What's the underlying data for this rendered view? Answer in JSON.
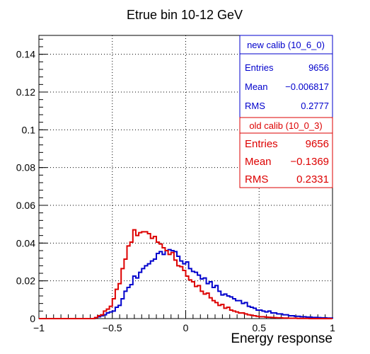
{
  "chart_data": {
    "type": "line",
    "title": "Etrue bin 10-12 GeV",
    "xlabel": "Energy response",
    "ylabel": "",
    "xlim": [
      -1,
      1
    ],
    "ylim": [
      0,
      0.15
    ],
    "grid": true,
    "x_ticks": [
      {
        "value": -1,
        "label": "−1"
      },
      {
        "value": -0.5,
        "label": "−0.5"
      },
      {
        "value": 0,
        "label": "0"
      },
      {
        "value": 0.5,
        "label": "0.5"
      },
      {
        "value": 1,
        "label": "1"
      }
    ],
    "y_ticks": [
      {
        "value": 0,
        "label": "0"
      },
      {
        "value": 0.02,
        "label": "0.02"
      },
      {
        "value": 0.04,
        "label": "0.04"
      },
      {
        "value": 0.06,
        "label": "0.06"
      },
      {
        "value": 0.08,
        "label": "0.08"
      },
      {
        "value": 0.1,
        "label": "0.1"
      },
      {
        "value": 0.12,
        "label": "0.12"
      },
      {
        "value": 0.14,
        "label": "0.14"
      }
    ],
    "bin_width": 0.02,
    "series": [
      {
        "name": "new calib (10_6_0)",
        "color": "#0000cc",
        "x": [
          -0.62,
          -0.6,
          -0.58,
          -0.56,
          -0.54,
          -0.52,
          -0.5,
          -0.48,
          -0.46,
          -0.44,
          -0.42,
          -0.4,
          -0.38,
          -0.36,
          -0.34,
          -0.32,
          -0.3,
          -0.28,
          -0.26,
          -0.24,
          -0.22,
          -0.2,
          -0.18,
          -0.16,
          -0.14,
          -0.12,
          -0.1,
          -0.08,
          -0.06,
          -0.04,
          -0.02,
          0,
          0.02,
          0.04,
          0.06,
          0.08,
          0.1,
          0.12,
          0.14,
          0.16,
          0.18,
          0.2,
          0.22,
          0.24,
          0.26,
          0.28,
          0.3,
          0.32,
          0.34,
          0.36,
          0.38,
          0.4,
          0.42,
          0.44,
          0.46,
          0.48,
          0.5,
          0.52,
          0.54,
          0.56,
          0.58,
          0.6,
          0.62,
          0.64,
          0.66,
          0.68,
          0.7,
          0.72,
          0.74,
          0.76,
          0.78,
          0.8,
          0.82,
          0.84,
          0.86,
          0.88,
          0.9,
          0.92,
          0.94,
          0.96,
          0.98
        ],
        "values": [
          0.0005,
          0.001,
          0.0015,
          0.002,
          0.003,
          0.0035,
          0.004,
          0.006,
          0.007,
          0.0105,
          0.0145,
          0.0165,
          0.018,
          0.0225,
          0.0215,
          0.0245,
          0.0265,
          0.028,
          0.029,
          0.0305,
          0.0315,
          0.0345,
          0.0355,
          0.034,
          0.036,
          0.0365,
          0.036,
          0.0355,
          0.033,
          0.0305,
          0.029,
          0.03,
          0.0265,
          0.025,
          0.0245,
          0.023,
          0.021,
          0.0215,
          0.0185,
          0.0195,
          0.0165,
          0.0175,
          0.0145,
          0.0125,
          0.013,
          0.012,
          0.0115,
          0.0105,
          0.0095,
          0.0095,
          0.008,
          0.0085,
          0.0065,
          0.006,
          0.0055,
          0.0045,
          0.0045,
          0.004,
          0.0035,
          0.004,
          0.003,
          0.003,
          0.0025,
          0.0025,
          0.002,
          0.002,
          0.0015,
          0.0015,
          0.0012,
          0.0012,
          0.001,
          0.001,
          0.0008,
          0.0008,
          0.0006,
          0.0006,
          0.0005,
          0.0004,
          0.0004,
          0.0003,
          0.0003
        ]
      },
      {
        "name": "old calib (10_0_3)",
        "color": "#dd0000",
        "x": [
          -0.62,
          -0.6,
          -0.58,
          -0.56,
          -0.54,
          -0.52,
          -0.5,
          -0.48,
          -0.46,
          -0.44,
          -0.42,
          -0.4,
          -0.38,
          -0.36,
          -0.34,
          -0.32,
          -0.3,
          -0.28,
          -0.26,
          -0.24,
          -0.22,
          -0.2,
          -0.18,
          -0.16,
          -0.14,
          -0.12,
          -0.1,
          -0.08,
          -0.06,
          -0.04,
          -0.02,
          0,
          0.02,
          0.04,
          0.06,
          0.08,
          0.1,
          0.12,
          0.14,
          0.16,
          0.18,
          0.2,
          0.22,
          0.24,
          0.26,
          0.28,
          0.3,
          0.32,
          0.34,
          0.36,
          0.38,
          0.4,
          0.42,
          0.44,
          0.46,
          0.48,
          0.5,
          0.52,
          0.54,
          0.56,
          0.58,
          0.6,
          0.62,
          0.64,
          0.66,
          0.68,
          0.7,
          0.72,
          0.74,
          0.76,
          0.78,
          0.8,
          0.82,
          0.84,
          0.86,
          0.88,
          0.9,
          0.92,
          0.94,
          0.96,
          0.98
        ],
        "values": [
          0.0005,
          0.0015,
          0.002,
          0.004,
          0.005,
          0.0065,
          0.0105,
          0.0155,
          0.0185,
          0.0265,
          0.0315,
          0.0385,
          0.0405,
          0.047,
          0.044,
          0.0455,
          0.046,
          0.046,
          0.045,
          0.0425,
          0.0435,
          0.0405,
          0.0395,
          0.0375,
          0.036,
          0.034,
          0.035,
          0.031,
          0.028,
          0.0275,
          0.0255,
          0.0225,
          0.0205,
          0.0195,
          0.017,
          0.0175,
          0.0145,
          0.013,
          0.0135,
          0.011,
          0.0095,
          0.0085,
          0.007,
          0.0075,
          0.0055,
          0.006,
          0.0045,
          0.004,
          0.0035,
          0.003,
          0.003,
          0.0025,
          0.002,
          0.0018,
          0.0015,
          0.0012,
          0.001,
          0.001,
          0.0008,
          0.0007,
          0.0006,
          0.0005,
          0.0004,
          0.0004,
          0.0003,
          0.0003,
          0.0002,
          0.0002,
          0.0002,
          0.0001,
          0.0001,
          0.0001,
          0.0001,
          0,
          0,
          0,
          0,
          0,
          0,
          0,
          0
        ]
      }
    ]
  },
  "stats_boxes": [
    {
      "title": "new calib (10_6_0)",
      "color": "#0000cc",
      "entries_label": "Entries",
      "entries_value": "9656",
      "mean_label": "Mean",
      "mean_value": "−0.006817",
      "rms_label": "RMS",
      "rms_value": "0.2777"
    },
    {
      "title": "old calib (10_0_3)",
      "color": "#dd0000",
      "entries_label": "Entries",
      "entries_value": "9656",
      "mean_label": "Mean",
      "mean_value": "−0.1369",
      "rms_label": "RMS",
      "rms_value": "0.2331"
    }
  ]
}
